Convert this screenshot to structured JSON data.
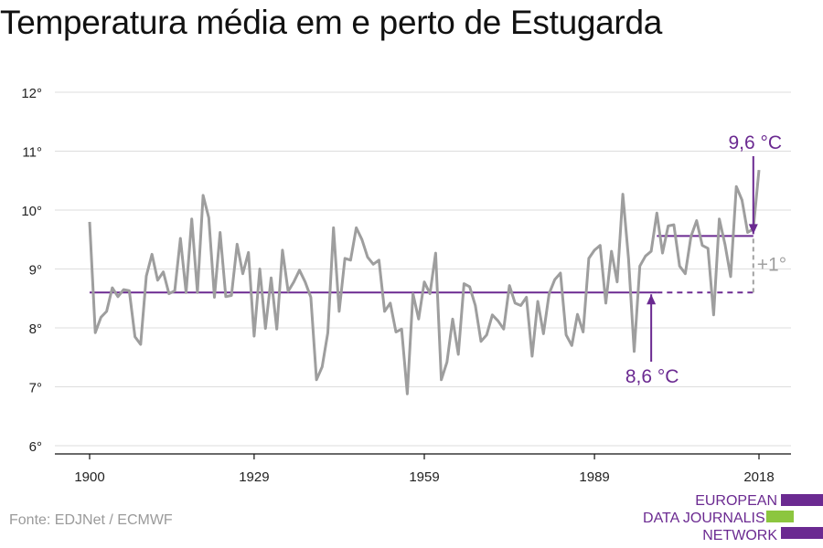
{
  "title": "Temperatura média em e perto de Estugarda",
  "source": "Fonte: EDJNet / ECMWF",
  "logo": {
    "lines": [
      "EUROPEAN",
      "DATA JOURNALISM",
      "NETWORK"
    ],
    "colors": {
      "purple": "#6b2a91",
      "green": "#8cc63f"
    }
  },
  "colors": {
    "series": "#9e9e9e",
    "accent": "#6b2a91",
    "grid": "#dddddd",
    "axis": "#111111",
    "delta": "#a0a0a0"
  },
  "chart_data": {
    "type": "line",
    "title": "Temperatura média em e perto de Estugarda",
    "xlabel": "",
    "ylabel": "",
    "xlim": [
      1900,
      2018
    ],
    "ylim": [
      6,
      12
    ],
    "grid": true,
    "x_ticks": [
      1900,
      1929,
      1959,
      1989,
      2018
    ],
    "y_ticks": [
      {
        "value": 6,
        "label": "6°"
      },
      {
        "value": 7,
        "label": "7°"
      },
      {
        "value": 8,
        "label": "8°"
      },
      {
        "value": 9,
        "label": "9°"
      },
      {
        "value": 10,
        "label": "10°"
      },
      {
        "value": 11,
        "label": "11°"
      },
      {
        "value": 12,
        "label": "12°"
      }
    ],
    "series": [
      {
        "values": [
          {
            "x": 1900,
            "y": 9.8
          },
          {
            "x": 1901,
            "y": 7.92
          },
          {
            "x": 1902,
            "y": 8.18
          },
          {
            "x": 1903,
            "y": 8.28
          },
          {
            "x": 1904,
            "y": 8.68
          },
          {
            "x": 1905,
            "y": 8.53
          },
          {
            "x": 1906,
            "y": 8.65
          },
          {
            "x": 1907,
            "y": 8.63
          },
          {
            "x": 1908,
            "y": 7.85
          },
          {
            "x": 1909,
            "y": 7.72
          },
          {
            "x": 1910,
            "y": 8.88
          },
          {
            "x": 1911,
            "y": 9.25
          },
          {
            "x": 1912,
            "y": 8.81
          },
          {
            "x": 1913,
            "y": 8.95
          },
          {
            "x": 1914,
            "y": 8.58
          },
          {
            "x": 1915,
            "y": 8.63
          },
          {
            "x": 1916,
            "y": 9.52
          },
          {
            "x": 1917,
            "y": 8.6
          },
          {
            "x": 1918,
            "y": 9.85
          },
          {
            "x": 1919,
            "y": 8.6
          },
          {
            "x": 1920,
            "y": 10.25
          },
          {
            "x": 1921,
            "y": 9.87
          },
          {
            "x": 1922,
            "y": 8.52
          },
          {
            "x": 1923,
            "y": 9.62
          },
          {
            "x": 1924,
            "y": 8.53
          },
          {
            "x": 1925,
            "y": 8.55
          },
          {
            "x": 1926,
            "y": 9.42
          },
          {
            "x": 1927,
            "y": 8.92
          },
          {
            "x": 1928,
            "y": 9.28
          },
          {
            "x": 1929,
            "y": 7.86
          },
          {
            "x": 1930,
            "y": 9.0
          },
          {
            "x": 1931,
            "y": 7.99
          },
          {
            "x": 1932,
            "y": 8.85
          },
          {
            "x": 1933,
            "y": 7.98
          },
          {
            "x": 1934,
            "y": 9.32
          },
          {
            "x": 1935,
            "y": 8.62
          },
          {
            "x": 1936,
            "y": 8.78
          },
          {
            "x": 1937,
            "y": 8.98
          },
          {
            "x": 1938,
            "y": 8.78
          },
          {
            "x": 1939,
            "y": 8.52
          },
          {
            "x": 1940,
            "y": 7.12
          },
          {
            "x": 1941,
            "y": 7.34
          },
          {
            "x": 1942,
            "y": 7.92
          },
          {
            "x": 1943,
            "y": 9.7
          },
          {
            "x": 1944,
            "y": 8.28
          },
          {
            "x": 1945,
            "y": 9.18
          },
          {
            "x": 1946,
            "y": 9.15
          },
          {
            "x": 1947,
            "y": 9.7
          },
          {
            "x": 1948,
            "y": 9.5
          },
          {
            "x": 1949,
            "y": 9.2
          },
          {
            "x": 1950,
            "y": 9.08
          },
          {
            "x": 1951,
            "y": 9.15
          },
          {
            "x": 1952,
            "y": 8.28
          },
          {
            "x": 1953,
            "y": 8.42
          },
          {
            "x": 1954,
            "y": 7.93
          },
          {
            "x": 1955,
            "y": 7.98
          },
          {
            "x": 1956,
            "y": 6.88
          },
          {
            "x": 1957,
            "y": 8.58
          },
          {
            "x": 1958,
            "y": 8.15
          },
          {
            "x": 1959,
            "y": 8.78
          },
          {
            "x": 1960,
            "y": 8.58
          },
          {
            "x": 1961,
            "y": 9.27
          },
          {
            "x": 1962,
            "y": 7.12
          },
          {
            "x": 1963,
            "y": 7.42
          },
          {
            "x": 1964,
            "y": 8.15
          },
          {
            "x": 1965,
            "y": 7.55
          },
          {
            "x": 1966,
            "y": 8.75
          },
          {
            "x": 1967,
            "y": 8.7
          },
          {
            "x": 1968,
            "y": 8.38
          },
          {
            "x": 1969,
            "y": 7.77
          },
          {
            "x": 1970,
            "y": 7.88
          },
          {
            "x": 1971,
            "y": 8.22
          },
          {
            "x": 1972,
            "y": 8.12
          },
          {
            "x": 1973,
            "y": 7.98
          },
          {
            "x": 1974,
            "y": 8.72
          },
          {
            "x": 1975,
            "y": 8.42
          },
          {
            "x": 1976,
            "y": 8.38
          },
          {
            "x": 1977,
            "y": 8.52
          },
          {
            "x": 1978,
            "y": 7.52
          },
          {
            "x": 1979,
            "y": 8.45
          },
          {
            "x": 1980,
            "y": 7.9
          },
          {
            "x": 1981,
            "y": 8.58
          },
          {
            "x": 1982,
            "y": 8.82
          },
          {
            "x": 1983,
            "y": 8.93
          },
          {
            "x": 1984,
            "y": 7.88
          },
          {
            "x": 1985,
            "y": 7.7
          },
          {
            "x": 1986,
            "y": 8.23
          },
          {
            "x": 1987,
            "y": 7.93
          },
          {
            "x": 1988,
            "y": 9.18
          },
          {
            "x": 1989,
            "y": 9.32
          },
          {
            "x": 1990,
            "y": 9.4
          },
          {
            "x": 1991,
            "y": 8.42
          },
          {
            "x": 1992,
            "y": 9.3
          },
          {
            "x": 1993,
            "y": 8.78
          },
          {
            "x": 1994,
            "y": 10.27
          },
          {
            "x": 1995,
            "y": 9.18
          },
          {
            "x": 1996,
            "y": 7.6
          },
          {
            "x": 1997,
            "y": 9.05
          },
          {
            "x": 1998,
            "y": 9.22
          },
          {
            "x": 1999,
            "y": 9.3
          },
          {
            "x": 2000,
            "y": 9.95
          },
          {
            "x": 2001,
            "y": 9.27
          },
          {
            "x": 2002,
            "y": 9.73
          },
          {
            "x": 2003,
            "y": 9.75
          },
          {
            "x": 2004,
            "y": 9.05
          },
          {
            "x": 2005,
            "y": 8.92
          },
          {
            "x": 2006,
            "y": 9.55
          },
          {
            "x": 2007,
            "y": 9.82
          },
          {
            "x": 2008,
            "y": 9.4
          },
          {
            "x": 2009,
            "y": 9.35
          },
          {
            "x": 2010,
            "y": 8.22
          },
          {
            "x": 2011,
            "y": 9.85
          },
          {
            "x": 2012,
            "y": 9.42
          },
          {
            "x": 2013,
            "y": 8.87
          },
          {
            "x": 2014,
            "y": 10.4
          },
          {
            "x": 2015,
            "y": 10.17
          },
          {
            "x": 2016,
            "y": 9.62
          },
          {
            "x": 2017,
            "y": 9.68
          },
          {
            "x": 2018,
            "y": 10.68
          }
        ]
      }
    ],
    "reference_lines": [
      {
        "label": "8,6 °C",
        "value": 8.6,
        "x_start": 1900,
        "x_end": 2000,
        "style": "solid",
        "dashed_extension_to": 2017
      },
      {
        "label": "9,6 °C",
        "value": 9.56,
        "x_start": 2000,
        "x_end": 2017,
        "style": "solid"
      }
    ],
    "annotations": [
      {
        "text": "+1°",
        "x": 2017,
        "from": 8.6,
        "to": 9.56
      }
    ]
  }
}
